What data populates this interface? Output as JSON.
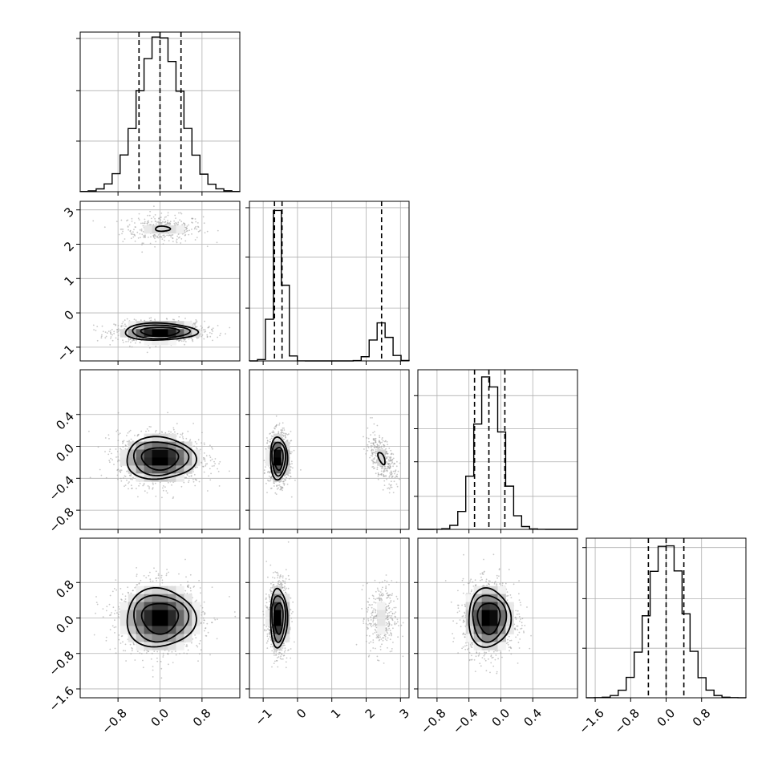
{
  "chart_data": {
    "type": "corner",
    "title": "",
    "params": [
      {
        "index": 0,
        "label": "",
        "range": [
          -1.52,
          1.52
        ],
        "ticks": [
          "−0.8",
          "0.0",
          "0.8"
        ],
        "tick_values": [
          -0.8,
          0.0,
          0.8
        ],
        "hist_ymax": 1.0,
        "hist_yticks": [
          0.33,
          0.66,
          1.0
        ],
        "quantiles": [
          -0.4,
          0.0,
          0.4
        ],
        "modes": [
          {
            "mean": 0.0,
            "sd": 0.4,
            "w": 1
          }
        ]
      },
      {
        "index": 1,
        "label": "",
        "range": [
          -1.4,
          3.25
        ],
        "ticks": [
          "−1",
          "0",
          "1",
          "2",
          "3"
        ],
        "tick_values": [
          -1,
          0,
          1,
          2,
          3
        ],
        "hist_ymax": 0.87,
        "hist_yticks": [
          0.3,
          0.59,
          0.87
        ],
        "quantiles": [
          -0.67,
          -0.45,
          2.45
        ],
        "modes": [
          {
            "mean": -0.55,
            "sd": 0.15,
            "w": 0.75
          },
          {
            "mean": 2.45,
            "sd": 0.22,
            "w": 0.25
          }
        ]
      },
      {
        "index": 2,
        "label": "",
        "range": [
          -1.04,
          0.96
        ],
        "ticks": [
          "−0.8",
          "−0.4",
          "0.0",
          "0.4"
        ],
        "tick_values": [
          -0.8,
          -0.4,
          0.0,
          0.4
        ],
        "hist_ymax": 1.02,
        "hist_yticks": [
          0.22,
          0.45,
          0.67,
          0.89
        ],
        "quantiles": [
          -0.33,
          -0.15,
          0.05
        ],
        "modes": [
          {
            "mean": -0.15,
            "sd": 0.16,
            "w": 1
          }
        ]
      },
      {
        "index": 3,
        "label": "",
        "range": [
          -1.8,
          1.8
        ],
        "ticks": [
          "−1.6",
          "−0.8",
          "0.0",
          "0.8"
        ],
        "tick_values": [
          -1.6,
          -0.8,
          0.0,
          0.8
        ],
        "hist_ymax": 1.02,
        "hist_yticks": [
          0.33,
          0.66,
          1.0
        ],
        "quantiles": [
          -0.4,
          0.0,
          0.4
        ],
        "modes": [
          {
            "mean": 0.0,
            "sd": 0.4,
            "w": 1
          }
        ]
      }
    ],
    "joint": [
      {
        "row": 1,
        "col": 0,
        "blobs": [
          {
            "cx": 0.05,
            "cy": 2.45,
            "sx": 0.38,
            "sy": 0.2,
            "w": 0.25,
            "rho": 0
          },
          {
            "cx": 0.0,
            "cy": -0.55,
            "sx": 0.42,
            "sy": 0.15,
            "w": 0.75,
            "rho": 0
          }
        ]
      },
      {
        "row": 2,
        "col": 0,
        "blobs": [
          {
            "cx": 0.0,
            "cy": -0.15,
            "sx": 0.4,
            "sy": 0.16,
            "w": 1,
            "rho": 0
          }
        ]
      },
      {
        "row": 2,
        "col": 1,
        "blobs": [
          {
            "cx": -0.55,
            "cy": -0.15,
            "sx": 0.15,
            "sy": 0.16,
            "w": 0.75,
            "rho": 0
          },
          {
            "cx": 2.45,
            "cy": -0.15,
            "sx": 0.22,
            "sy": 0.16,
            "w": 0.25,
            "rho": -0.6
          }
        ]
      },
      {
        "row": 3,
        "col": 0,
        "blobs": [
          {
            "cx": 0.0,
            "cy": 0.0,
            "sx": 0.4,
            "sy": 0.4,
            "w": 1,
            "rho": 0
          }
        ]
      },
      {
        "row": 3,
        "col": 1,
        "blobs": [
          {
            "cx": -0.55,
            "cy": 0.0,
            "sx": 0.15,
            "sy": 0.4,
            "w": 0.75,
            "rho": 0
          },
          {
            "cx": 2.45,
            "cy": 0.0,
            "sx": 0.22,
            "sy": 0.4,
            "w": 0.25,
            "rho": 0
          }
        ]
      },
      {
        "row": 3,
        "col": 2,
        "blobs": [
          {
            "cx": -0.15,
            "cy": 0.0,
            "sx": 0.16,
            "sy": 0.4,
            "w": 1,
            "rho": 0
          }
        ]
      }
    ],
    "grid": true,
    "quantile_style": "dashed",
    "contour_levels": [
      0.4,
      0.7,
      0.9
    ]
  }
}
